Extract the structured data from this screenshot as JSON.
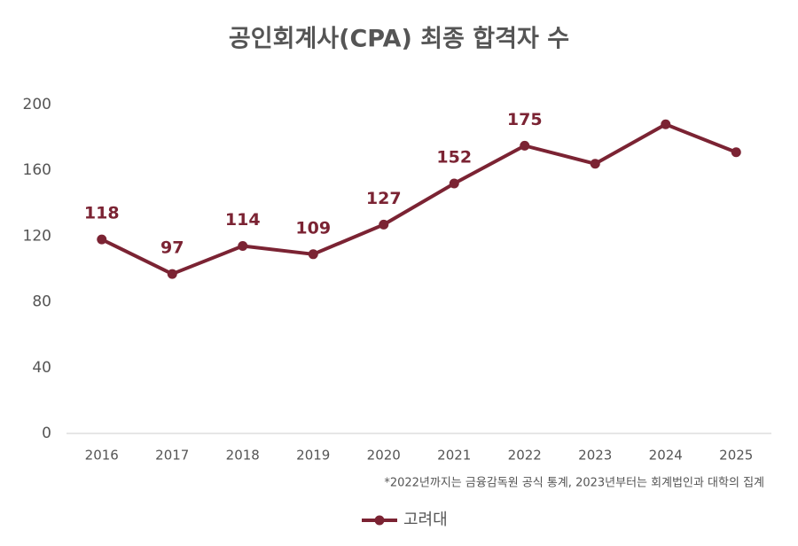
{
  "chart_data": {
    "type": "line",
    "title": "공인회계사(CPA) 최종 합격자 수",
    "categories": [
      "2016",
      "2017",
      "2018",
      "2019",
      "2020",
      "2021",
      "2022",
      "2023",
      "2024",
      "2025"
    ],
    "series": [
      {
        "name": "고려대",
        "color": "#7b2333",
        "values": [
          118,
          97,
          114,
          109,
          127,
          152,
          175,
          164,
          188,
          171
        ],
        "value_labels": [
          "118",
          "97",
          "114",
          "109",
          "127",
          "152",
          "175",
          null,
          null,
          null
        ]
      }
    ],
    "ylim": [
      0,
      200
    ],
    "yticks": [
      0,
      40,
      80,
      120,
      160,
      200
    ],
    "grid": false,
    "note": "*2022년까지는 금융감독원 공식 통계, 2023년부터는 회계법인과 대학의 집계",
    "legend": "bottom"
  }
}
